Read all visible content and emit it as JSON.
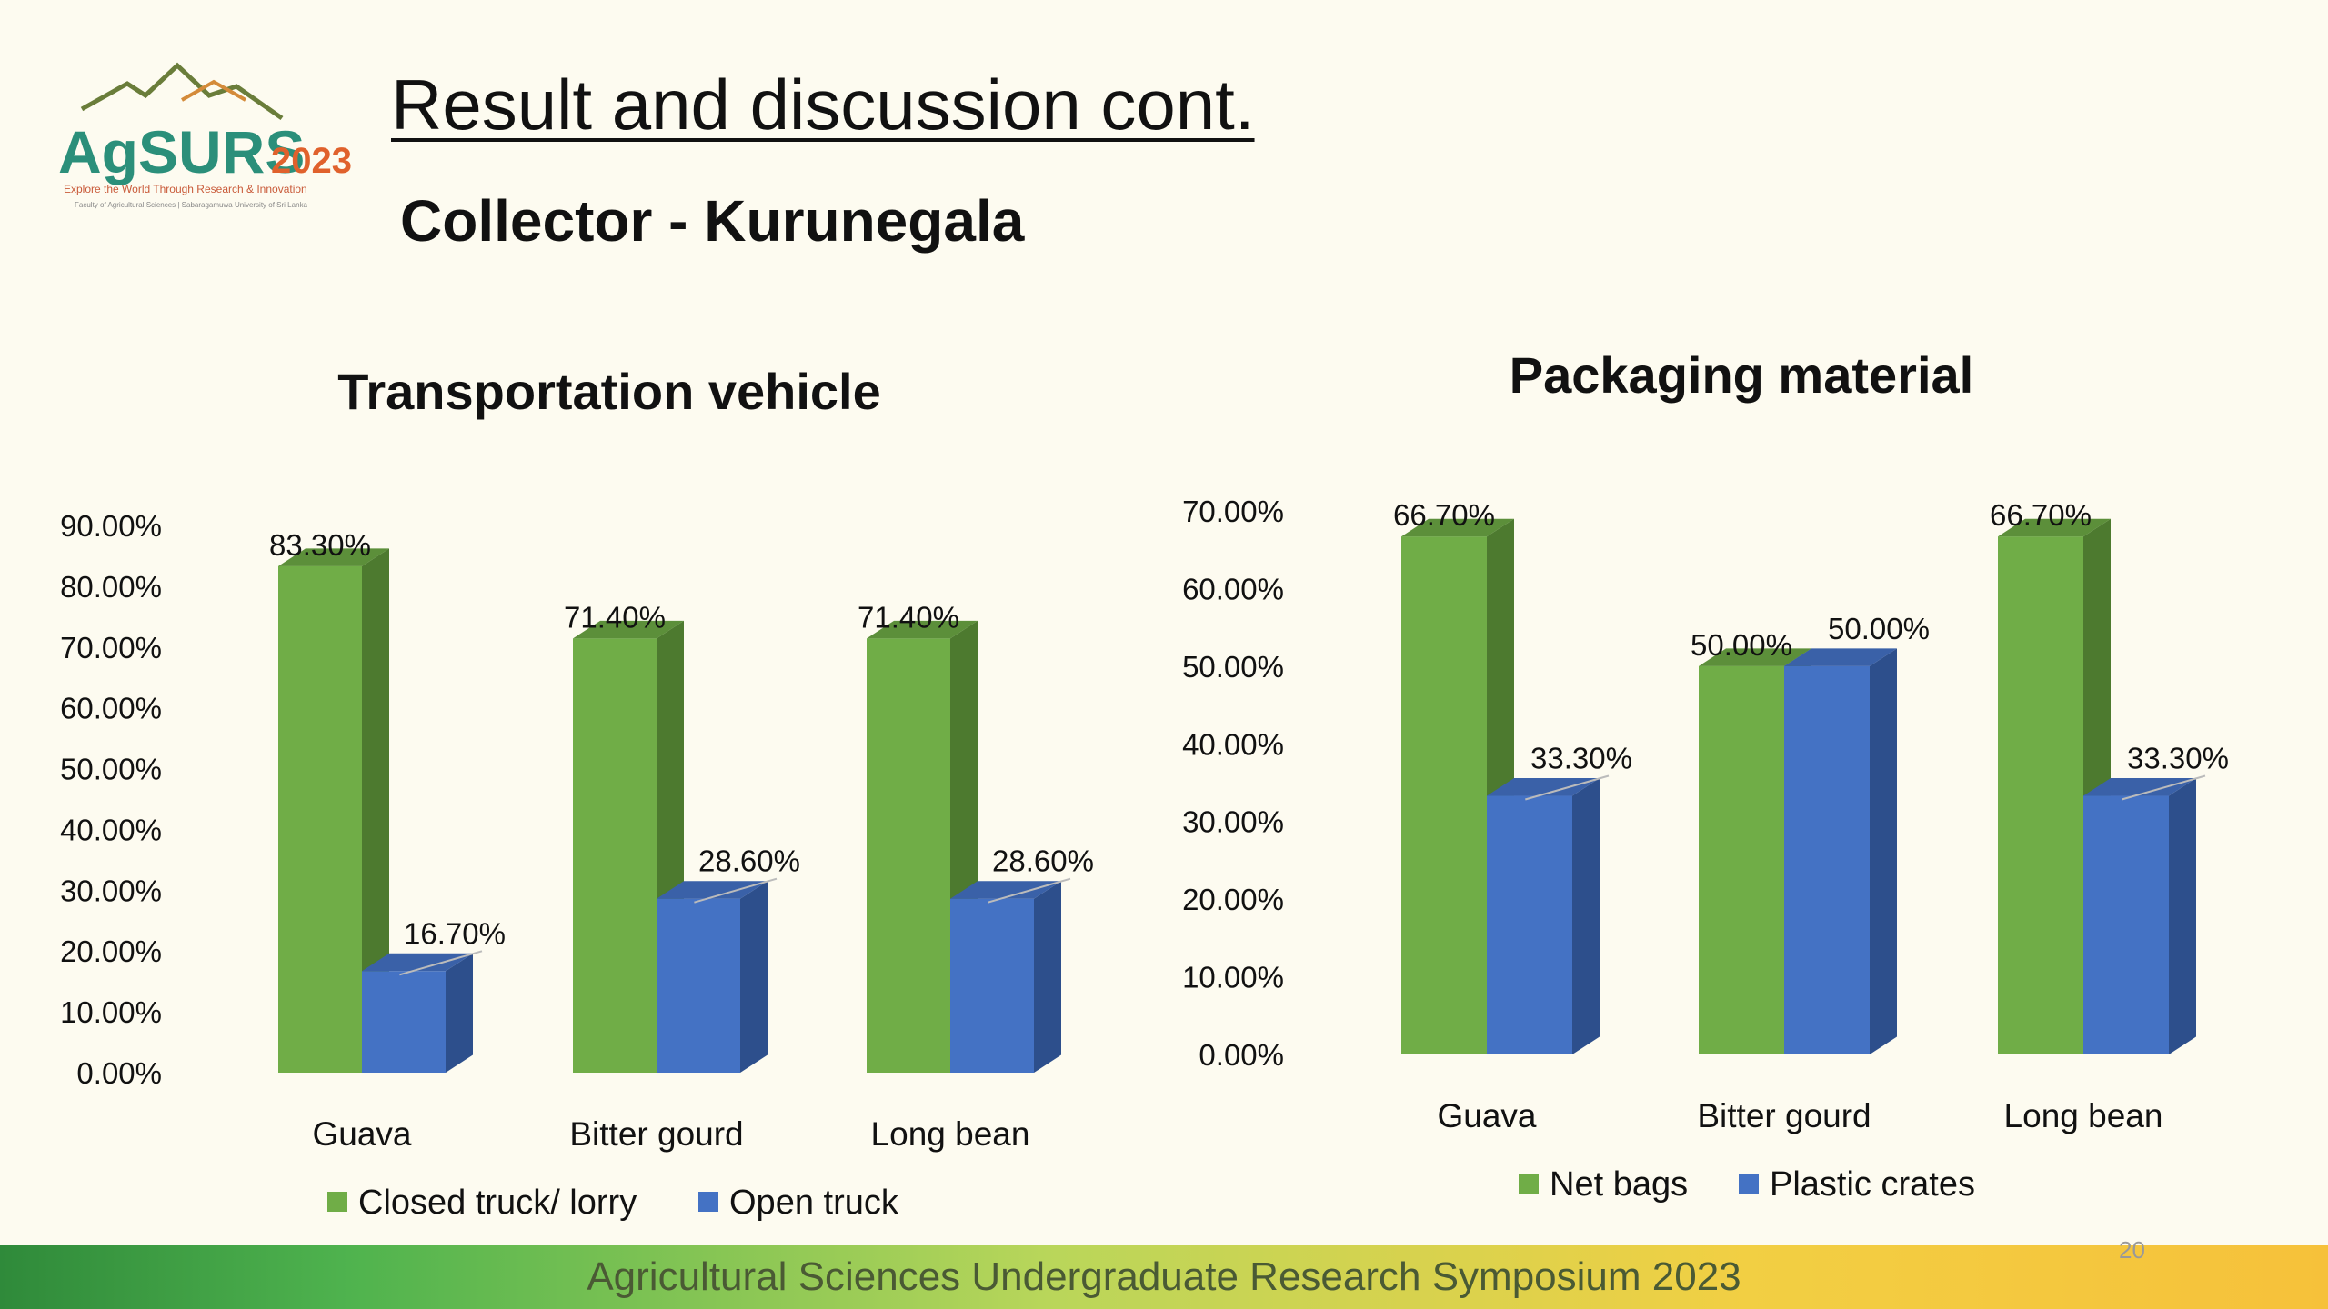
{
  "slide": {
    "title": "Result and discussion cont.",
    "subtitle": "Collector  - Kurunegala",
    "page_number": "20",
    "footer": "Agricultural Sciences Undergraduate Research Symposium 2023"
  },
  "logo": {
    "name": "AgSURS",
    "year": "2023",
    "tagline": "Explore the World Through Research & Innovation",
    "faculty": "Faculty of Agricultural Sciences | Sabaragamuwa University of Sri Lanka"
  },
  "colors": {
    "green": "#70ad47",
    "green_side": "#4d7a2f",
    "green_top": "#5c8f3a",
    "blue": "#4472c4",
    "blue_side": "#2d4f8c",
    "blue_top": "#3a61a8"
  },
  "chart_data": [
    {
      "type": "bar",
      "title": "Transportation vehicle",
      "categories": [
        "Guava",
        "Bitter gourd",
        "Long bean"
      ],
      "series": [
        {
          "name": "Closed truck/ lorry",
          "values": [
            83.3,
            71.4,
            71.4
          ],
          "labels": [
            "83.30%",
            "71.40%",
            "71.40%"
          ]
        },
        {
          "name": "Open truck",
          "values": [
            16.7,
            28.6,
            28.6
          ],
          "labels": [
            "16.70%",
            "28.60%",
            "28.60%"
          ]
        }
      ],
      "ylim": [
        0,
        90
      ],
      "yticks": [
        "0.00%",
        "10.00%",
        "20.00%",
        "30.00%",
        "40.00%",
        "50.00%",
        "60.00%",
        "70.00%",
        "80.00%",
        "90.00%"
      ],
      "legend": "bottom"
    },
    {
      "type": "bar",
      "title": "Packaging material",
      "categories": [
        "Guava",
        "Bitter gourd",
        "Long bean"
      ],
      "series": [
        {
          "name": "Net bags",
          "values": [
            66.7,
            50.0,
            66.7
          ],
          "labels": [
            "66.70%",
            "50.00%",
            "66.70%"
          ]
        },
        {
          "name": "Plastic crates",
          "values": [
            33.3,
            50.0,
            33.3
          ],
          "labels": [
            "33.30%",
            "50.00%",
            "33.30%"
          ]
        }
      ],
      "ylim": [
        0,
        70
      ],
      "yticks": [
        "0.00%",
        "10.00%",
        "20.00%",
        "30.00%",
        "40.00%",
        "50.00%",
        "60.00%",
        "70.00%"
      ],
      "legend": "bottom"
    }
  ]
}
